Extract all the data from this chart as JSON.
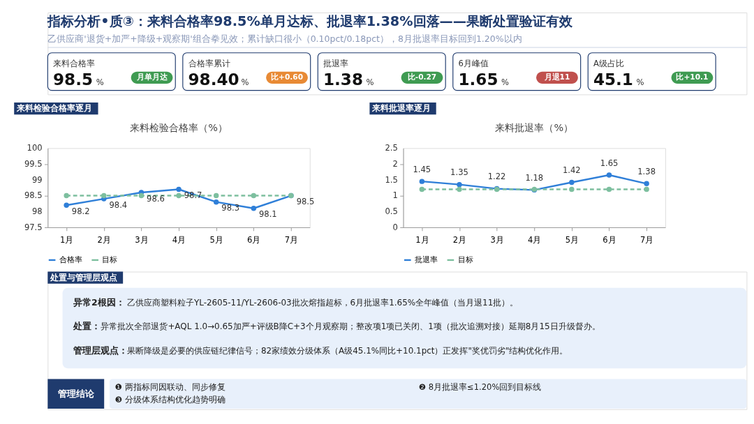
{
  "chart_data": [
    {
      "type": "other",
      "title": "指标分析•质③：来料合格率98.5%单月达标、批退率1.38%回落——果断处置验证有效",
      "subtitle": "乙供应商'退货+加严+降级+观察期'组合拳见效；累计缺口很小（0.10pct/0.18pct），8月批退率目标回到1.20%以内",
      "annotations": [
        "来料合格率",
        "98.5",
        "%",
        "月单月达",
        "合格率累计",
        "98.40",
        "%",
        "比+0.60",
        "批退率",
        "1.38",
        "%",
        "比-0.27",
        "6月峰值",
        "1.65",
        "%",
        "月退11",
        "A级占比",
        "45.1",
        "%",
        "比+10.1"
      ]
    },
    {
      "type": "line",
      "title": "来料检验合格率（%）",
      "annotations": [
        "来料检验合格率逐月"
      ],
      "categories": [
        "1月",
        "2月",
        "3月",
        "4月",
        "5月",
        "6月",
        "7月"
      ],
      "ylim": [
        97.5,
        100
      ],
      "yticks": [
        97.5,
        98,
        98.5,
        99,
        99.5,
        100
      ],
      "legend": "bottom",
      "marker": "circle",
      "series": [
        {
          "name": "合格率",
          "color": "#2f7fd8",
          "line_style": "solid",
          "values": [
            98.2,
            98.4,
            98.6,
            98.7,
            98.3,
            98.1,
            98.5
          ],
          "value_labels": [
            "98.2",
            "98.4",
            "98.6",
            "98.7",
            "98.3",
            "98.1",
            "98.5"
          ]
        },
        {
          "name": "目标",
          "color": "#7dbf9f",
          "line_style": "dashed",
          "values": [
            98.5,
            98.5,
            98.5,
            98.5,
            98.5,
            98.5,
            98.5
          ]
        }
      ]
    },
    {
      "type": "line",
      "title": "来料批退率（%）",
      "annotations": [
        "来料批退率逐月"
      ],
      "categories": [
        "1月",
        "2月",
        "3月",
        "4月",
        "5月",
        "6月",
        "7月"
      ],
      "ylim": [
        0,
        2.5
      ],
      "yticks": [
        0,
        0.5,
        1,
        1.5,
        2,
        2.5
      ],
      "legend": "bottom",
      "marker": "circle",
      "series": [
        {
          "name": "批退率",
          "color": "#2f7fd8",
          "line_style": "solid",
          "values": [
            1.45,
            1.35,
            1.22,
            1.18,
            1.42,
            1.65,
            1.38
          ],
          "value_labels": [
            "1.45",
            "1.35",
            "1.22",
            "1.18",
            "1.42",
            "1.65",
            "1.38"
          ]
        },
        {
          "name": "目标",
          "color": "#7dbf9f",
          "line_style": "dashed",
          "values": [
            1.2,
            1.2,
            1.2,
            1.2,
            1.2,
            1.2,
            1.2
          ]
        }
      ]
    },
    {
      "type": "other",
      "title": "处置与管理层观点",
      "annotations": [
        "异常2根因：",
        "乙供应商塑料粒子YL-2605-11/YL-2606-03批次熔指超标，6月批退率1.65%全年峰值（当月退11批）。",
        "处置：",
        "异常批次全部退货+AQL 1.0→0.65加严+评级B降C+3个月观察期；整改项1项已关闭、1项（批次追溯对接）延期8月15日升级督办。",
        "管理层观点：",
        "果断降级是必要的供应链纪律信号；82家绩效分级体系（A级45.1%同比+10.1pct）正发挥\"奖优罚劣\"结构优化作用。",
        "管理结论",
        "❶ 两指标同因联动、同步修复",
        "❷ 8月批退率≤1.20%回到目标线",
        "❸ 分级体系结构优化趋势明确"
      ]
    }
  ]
}
